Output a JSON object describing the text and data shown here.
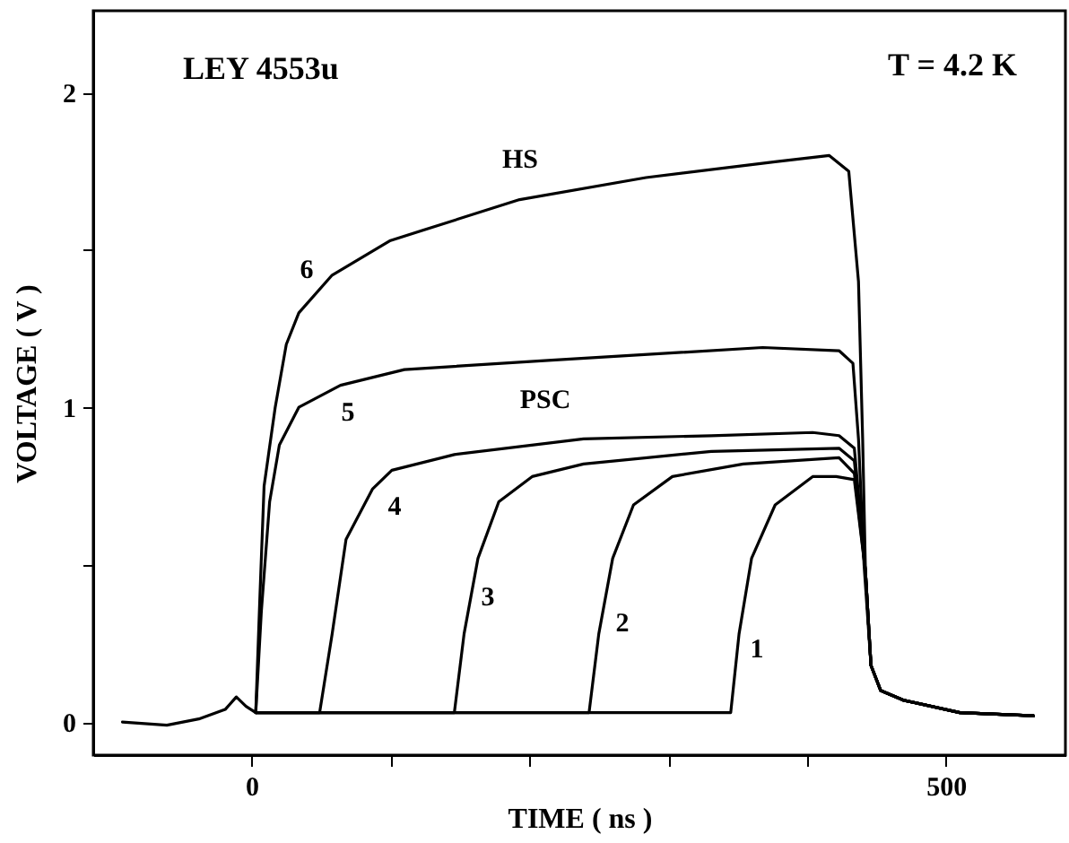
{
  "chart_data": {
    "type": "line",
    "xlabel": "TIME  ( ns )",
    "ylabel": "VOLTAGE  ( V )",
    "xlim": [
      -114,
      586
    ],
    "ylim": [
      -0.105,
      2.26
    ],
    "xticks": [
      0,
      {
        "value": 100,
        "label": null
      },
      {
        "value": 200,
        "label": null
      },
      {
        "value": 300,
        "label": null
      },
      {
        "value": 400,
        "label": null
      },
      500
    ],
    "yticks": [
      0,
      {
        "value": 0.5,
        "label": null
      },
      1,
      {
        "value": 1.5,
        "label": null
      },
      2
    ],
    "marker": "none",
    "line_style": "solid",
    "series": [
      {
        "color": "#000000",
        "x": [
          -93,
          -61,
          -38,
          -19,
          -11,
          -4,
          3,
          6,
          9,
          17,
          25,
          34,
          58,
          100,
          193,
          284,
          377,
          416,
          430,
          437,
          440,
          442,
          446,
          453,
          469,
          510,
          563
        ],
        "values": [
          0,
          -0.01,
          0.01,
          0.04,
          0.08,
          0.05,
          0.03,
          0.4,
          0.75,
          1.0,
          1.2,
          1.3,
          1.42,
          1.53,
          1.66,
          1.73,
          1.78,
          1.8,
          1.75,
          1.4,
          0.9,
          0.48,
          0.18,
          0.1,
          0.07,
          0.03,
          0.02
        ]
      },
      {
        "color": "#000000",
        "x": [
          3,
          7,
          13,
          20,
          34,
          64,
          110,
          216,
          368,
          423,
          433,
          437,
          441,
          446,
          453,
          469,
          510,
          563
        ],
        "values": [
          0.03,
          0.35,
          0.7,
          0.88,
          1.0,
          1.07,
          1.12,
          1.15,
          1.19,
          1.18,
          1.14,
          0.9,
          0.5,
          0.18,
          0.1,
          0.07,
          0.03,
          0.02
        ]
      },
      {
        "color": "#000000",
        "x": [
          3,
          49,
          58,
          68,
          87,
          101,
          146,
          239,
          331,
          404,
          423,
          434,
          442,
          446,
          453,
          469,
          510,
          563
        ],
        "values": [
          0.03,
          0.03,
          0.28,
          0.58,
          0.74,
          0.8,
          0.85,
          0.9,
          0.91,
          0.92,
          0.91,
          0.87,
          0.48,
          0.18,
          0.1,
          0.07,
          0.03,
          0.02
        ]
      },
      {
        "color": "#000000",
        "x": [
          3,
          146,
          153,
          163,
          178,
          202,
          239,
          331,
          423,
          434,
          442,
          446,
          453,
          469,
          510,
          563
        ],
        "values": [
          0.03,
          0.03,
          0.28,
          0.52,
          0.7,
          0.78,
          0.82,
          0.86,
          0.87,
          0.83,
          0.48,
          0.18,
          0.1,
          0.07,
          0.03,
          0.02
        ]
      },
      {
        "color": "#000000",
        "x": [
          3,
          243,
          250,
          260,
          275,
          303,
          354,
          423,
          434,
          442,
          446,
          453,
          469,
          510,
          563
        ],
        "values": [
          0.03,
          0.03,
          0.28,
          0.52,
          0.69,
          0.78,
          0.82,
          0.84,
          0.79,
          0.48,
          0.18,
          0.1,
          0.07,
          0.03,
          0.02
        ]
      },
      {
        "color": "#000000",
        "x": [
          3,
          345,
          351,
          360,
          377,
          404,
          421,
          434,
          442,
          446,
          453,
          469,
          510,
          563
        ],
        "values": [
          0.03,
          0.03,
          0.28,
          0.52,
          0.69,
          0.78,
          0.78,
          0.77,
          0.48,
          0.18,
          0.1,
          0.07,
          0.03,
          0.02
        ]
      }
    ],
    "annotations": [
      "LEY 4553u",
      "T = 4.2 K",
      "HS",
      "PSC",
      "6",
      "5",
      "4",
      "3",
      "2",
      "1"
    ]
  }
}
